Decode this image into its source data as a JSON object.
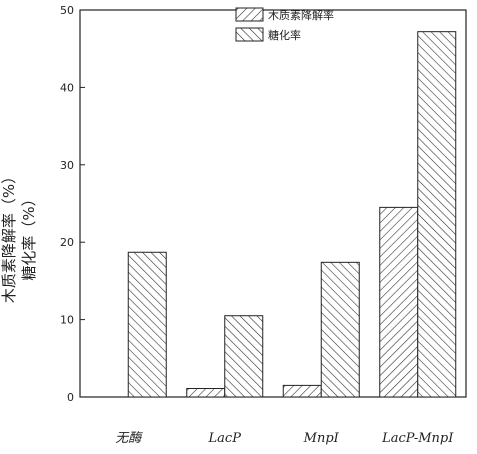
{
  "chart_data": {
    "type": "bar",
    "title": "",
    "xlabel": "",
    "ylabel": "木质素降解率（%）",
    "ylabel_line2": "糖化率（%）",
    "categories": [
      "无酶",
      "LacP",
      "MnpI",
      "LacP-MnpI"
    ],
    "series": [
      {
        "name": "木质素降解率",
        "values": [
          0,
          1.1,
          1.5,
          24.5
        ],
        "pattern": "hatch-ltr"
      },
      {
        "name": "糖化率",
        "values": [
          18.7,
          10.5,
          17.4,
          47.2
        ],
        "pattern": "hatch-rtl"
      }
    ],
    "ylim": [
      0,
      50
    ],
    "yticks": [
      0,
      10,
      20,
      30,
      40,
      50
    ],
    "grid": false,
    "legend_position": "top-right",
    "colors": {
      "axis": "#222222",
      "bar_fill": "#ffffff",
      "hatch": "#333333"
    }
  }
}
